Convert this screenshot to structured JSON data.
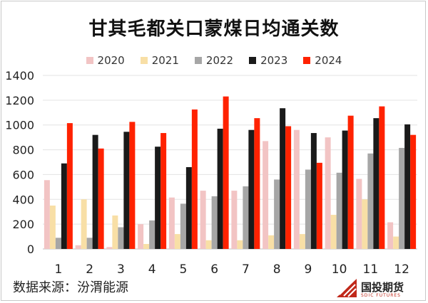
{
  "source_note": "数据来源：汾渭能源",
  "brand": {
    "name": "国投期货",
    "sub": "SDIC FUTURES",
    "icon": "sdic-logo-mark"
  },
  "colors": {
    "2020": "#f2c4c4",
    "2021": "#f8dfa6",
    "2022": "#a6a6a6",
    "2023": "#1a1a1a",
    "2024": "#ff2200"
  },
  "chart_data": {
    "type": "bar",
    "title": "甘其毛都关口蒙煤日均通关数",
    "xlabel": "",
    "ylabel": "",
    "ylim": [
      0,
      1400
    ],
    "yticks": [
      0,
      200,
      400,
      600,
      800,
      1000,
      1200,
      1400
    ],
    "grid": true,
    "legend_position": "top",
    "categories": [
      "1",
      "2",
      "3",
      "4",
      "5",
      "6",
      "7",
      "8",
      "9",
      "10",
      "11",
      "12"
    ],
    "series": [
      {
        "name": "2020",
        "values": [
          555,
          30,
          15,
          200,
          415,
          470,
          470,
          870,
          960,
          900,
          565,
          215
        ]
      },
      {
        "name": "2021",
        "values": [
          350,
          400,
          270,
          40,
          120,
          70,
          70,
          110,
          120,
          275,
          400,
          100
        ]
      },
      {
        "name": "2022",
        "values": [
          90,
          90,
          175,
          230,
          365,
          425,
          505,
          560,
          640,
          615,
          770,
          815
        ]
      },
      {
        "name": "2023",
        "values": [
          690,
          920,
          945,
          825,
          660,
          970,
          960,
          1135,
          935,
          955,
          1055,
          1005
        ]
      },
      {
        "name": "2024",
        "values": [
          1015,
          810,
          1025,
          935,
          1125,
          1230,
          1055,
          990,
          695,
          1075,
          1150,
          920
        ]
      }
    ]
  }
}
